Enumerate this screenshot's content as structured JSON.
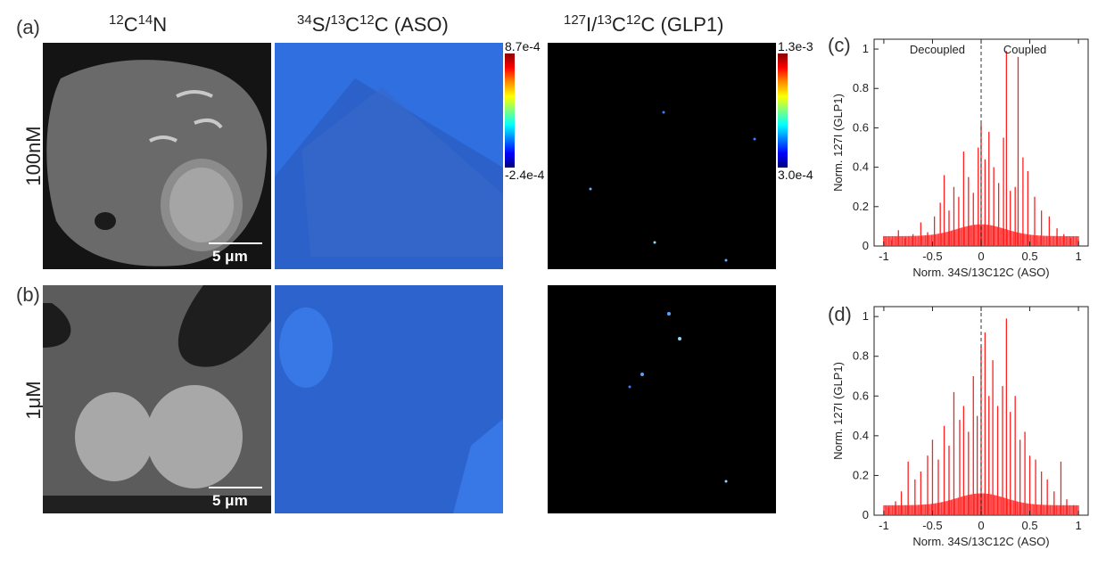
{
  "panel_labels": {
    "a": "(a)",
    "b": "(b)",
    "c": "(c)",
    "d": "(d)"
  },
  "column_titles": {
    "em": {
      "sup1": "12",
      "base1": "C",
      "sup2": "14",
      "base2": "N"
    },
    "aso": {
      "sup1": "34",
      "base1": "S/",
      "sup2": "13",
      "base2": "C",
      "sup3": "12",
      "base3": "C (ASO)"
    },
    "glp": {
      "sup1": "127",
      "base1": "I/",
      "sup2": "13",
      "base2": "C",
      "sup3": "12",
      "base3": "C (GLP1)"
    }
  },
  "row_labels": {
    "top": "100nM",
    "bottom": "1μM"
  },
  "scale_bar": "5 μm",
  "colorbars": {
    "aso": {
      "max": "8.7e-4",
      "min": "-2.4e-4"
    },
    "glp": {
      "max": "1.3e-3",
      "min": "3.0e-4"
    }
  },
  "colors": {
    "hist": "#ff2020",
    "aso_bg": "#2f6fe0",
    "em_bg": "#3a3a3a",
    "glp_bg": "#000000"
  },
  "chart_data": [
    {
      "type": "bar",
      "panel": "(c)",
      "xlabel": "Norm. 34S/13C12C (ASO)",
      "ylabel": "Norm. 127I (GLP1)",
      "xlim": [
        -1.1,
        1.1
      ],
      "ylim": [
        0,
        1.05
      ],
      "xticks": [
        "-1",
        "-0.5",
        "0",
        "0.5",
        "1"
      ],
      "yticks": [
        "0",
        "0.2",
        "0.4",
        "0.6",
        "0.8",
        "1"
      ],
      "annotations": [
        "Decoupled",
        "Coupled"
      ],
      "reference_line_x": 0,
      "x": [
        -1.0,
        -0.92,
        -0.85,
        -0.78,
        -0.7,
        -0.62,
        -0.55,
        -0.48,
        -0.42,
        -0.38,
        -0.33,
        -0.28,
        -0.23,
        -0.18,
        -0.13,
        -0.08,
        -0.03,
        0.0,
        0.04,
        0.08,
        0.13,
        0.18,
        0.23,
        0.26,
        0.3,
        0.35,
        0.38,
        0.43,
        0.48,
        0.55,
        0.62,
        0.7,
        0.78,
        0.85,
        0.92,
        1.0
      ],
      "values": [
        0.05,
        0.03,
        0.08,
        0.04,
        0.06,
        0.12,
        0.07,
        0.15,
        0.22,
        0.36,
        0.18,
        0.3,
        0.25,
        0.48,
        0.35,
        0.27,
        0.5,
        0.62,
        0.44,
        0.58,
        0.4,
        0.32,
        0.55,
        0.99,
        0.28,
        0.3,
        0.96,
        0.45,
        0.38,
        0.25,
        0.18,
        0.15,
        0.09,
        0.06,
        0.04,
        0.03
      ]
    },
    {
      "type": "bar",
      "panel": "(d)",
      "xlabel": "Norm. 34S/13C12C (ASO)",
      "ylabel": "Norm. 127I (GLP1)",
      "xlim": [
        -1.1,
        1.1
      ],
      "ylim": [
        0,
        1.05
      ],
      "xticks": [
        "-1",
        "-0.5",
        "0",
        "0.5",
        "1"
      ],
      "yticks": [
        "0",
        "0.2",
        "0.4",
        "0.6",
        "0.8",
        "1"
      ],
      "reference_line_x": 0,
      "x": [
        -0.95,
        -0.88,
        -0.82,
        -0.75,
        -0.68,
        -0.62,
        -0.55,
        -0.5,
        -0.44,
        -0.38,
        -0.33,
        -0.28,
        -0.22,
        -0.18,
        -0.13,
        -0.08,
        -0.04,
        0.0,
        0.04,
        0.08,
        0.12,
        0.17,
        0.22,
        0.26,
        0.3,
        0.35,
        0.4,
        0.45,
        0.5,
        0.56,
        0.62,
        0.68,
        0.75,
        0.82,
        0.88,
        0.95
      ],
      "values": [
        0.04,
        0.07,
        0.12,
        0.27,
        0.18,
        0.22,
        0.3,
        0.38,
        0.28,
        0.45,
        0.35,
        0.62,
        0.48,
        0.55,
        0.42,
        0.7,
        0.5,
        0.85,
        0.92,
        0.6,
        0.78,
        0.55,
        0.65,
        0.99,
        0.52,
        0.6,
        0.38,
        0.42,
        0.3,
        0.28,
        0.22,
        0.18,
        0.12,
        0.27,
        0.08,
        0.05
      ]
    }
  ]
}
